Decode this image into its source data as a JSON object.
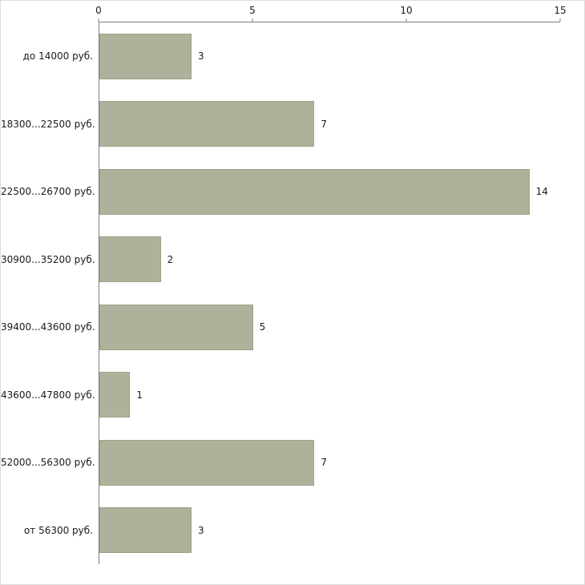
{
  "chart_data": {
    "type": "bar",
    "orientation": "horizontal",
    "title": "",
    "xlabel": "",
    "ylabel": "",
    "categories": [
      "до 14000 руб.",
      "18300...22500 руб.",
      "22500...26700 руб.",
      "30900...35200 руб.",
      "39400...43600 руб.",
      "43600...47800 руб.",
      "52000...56300 руб.",
      "от 56300 руб."
    ],
    "values": [
      3,
      7,
      14,
      2,
      5,
      1,
      7,
      3
    ],
    "xlim": [
      0,
      15
    ],
    "x_ticks": [
      0,
      5,
      10,
      15
    ],
    "grid": false,
    "legend": false,
    "bar_color": "#adb39b",
    "bar_border_color": "#9aa185",
    "axis_color": "#808080"
  }
}
